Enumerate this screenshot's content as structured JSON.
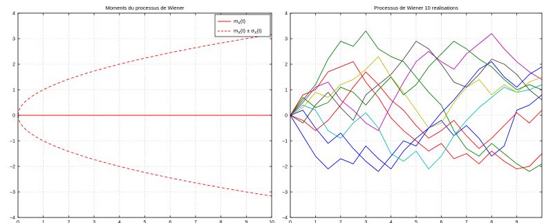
{
  "chart_data": [
    {
      "type": "line",
      "title": "Moments du processus de Wiener",
      "xlabel": "",
      "ylabel": "",
      "xlim": [
        0,
        10
      ],
      "ylim": [
        -4,
        4
      ],
      "xticks": [
        0,
        1,
        2,
        3,
        4,
        5,
        6,
        7,
        8,
        9,
        10
      ],
      "yticks": [
        -4,
        -3,
        -2,
        -1,
        0,
        1,
        2,
        3,
        4
      ],
      "grid": true,
      "legend_position": "top-right",
      "legend": {
        "mean_base": "m",
        "mean_sub": "X",
        "mean_tail": "(t)",
        "band_base": "m",
        "band_sub": "X",
        "band_mid": "(t) ± σ",
        "band_sub2": "X",
        "band_tail": "(t)"
      },
      "series": [
        {
          "name": "m_X(t)",
          "color": "#ff0000",
          "style": "solid",
          "function": "zero",
          "x": [
            0,
            10
          ],
          "y": [
            0,
            0
          ]
        },
        {
          "name": "m_X(t) ± σ_X(t)",
          "color": "#ff0000",
          "style": "dashed",
          "function": "sqrt",
          "x": [
            0,
            0.1,
            0.5,
            1,
            2,
            3,
            4,
            5,
            6,
            7,
            8,
            9,
            10
          ],
          "y_upper": [
            0,
            0.32,
            0.71,
            1.0,
            1.41,
            1.73,
            2.0,
            2.24,
            2.45,
            2.65,
            2.83,
            3.0,
            3.16
          ],
          "y_lower": [
            0,
            -0.32,
            -0.71,
            -1.0,
            -1.41,
            -1.73,
            -2.0,
            -2.24,
            -2.45,
            -2.65,
            -2.83,
            -3.0,
            -3.16
          ]
        }
      ]
    },
    {
      "type": "line",
      "title": "Processus de Wiener 10 realisations",
      "xlabel": "",
      "ylabel": "",
      "xlim": [
        0,
        10
      ],
      "ylim": [
        -4,
        4
      ],
      "xticks": [
        0,
        1,
        2,
        3,
        4,
        5,
        6,
        7,
        8,
        9
      ],
      "yticks": [
        -4,
        -3,
        -2,
        -1,
        0,
        1,
        2,
        3,
        4
      ],
      "grid": true,
      "series": [
        {
          "color": "#0000ff",
          "x": [
            0,
            0.5,
            1,
            1.5,
            2,
            2.5,
            3,
            3.5,
            4,
            4.5,
            5,
            5.5,
            6,
            6.5,
            7,
            7.5,
            8,
            8.5,
            9,
            9.5,
            10
          ],
          "y": [
            0,
            -0.8,
            -1.6,
            -2.1,
            -1.7,
            -1.9,
            -1.2,
            -1.7,
            -2.1,
            -1.4,
            -0.9,
            -0.5,
            -0.2,
            -0.8,
            -0.4,
            -0.9,
            -1.6,
            -1.2,
            0.2,
            0.4,
            0.8
          ]
        },
        {
          "color": "#008000",
          "x": [
            0,
            0.5,
            1,
            1.5,
            2,
            2.5,
            3,
            3.5,
            4,
            4.5,
            5,
            5.5,
            6,
            6.5,
            7,
            7.5,
            8,
            8.5,
            9,
            9.5,
            10
          ],
          "y": [
            0,
            0.6,
            1.2,
            2.2,
            2.9,
            2.7,
            3.3,
            2.6,
            2.3,
            2.1,
            1.5,
            0.9,
            0.4,
            -0.6,
            -1.3,
            -1.6,
            -1.1,
            -1.5,
            -1.9,
            -2.2,
            -1.9
          ]
        },
        {
          "color": "#ff0000",
          "x": [
            0,
            0.5,
            1,
            1.5,
            2,
            2.5,
            3,
            3.5,
            4,
            4.5,
            5,
            5.5,
            6,
            6.5,
            7,
            7.5,
            8,
            8.5,
            9,
            9.5,
            10
          ],
          "y": [
            0,
            0.8,
            1.0,
            1.7,
            1.9,
            2.1,
            1.3,
            0.7,
            -0.1,
            -0.6,
            -1.0,
            -1.4,
            -1.1,
            -1.7,
            -1.5,
            -1.9,
            -1.4,
            -1.8,
            -2.1,
            -2.0,
            -1.5
          ]
        },
        {
          "color": "#00bfbf",
          "x": [
            0,
            0.5,
            1,
            1.5,
            2,
            2.5,
            3,
            3.5,
            4,
            4.5,
            5,
            5.5,
            6,
            6.5,
            7,
            7.5,
            8,
            8.5,
            9,
            9.5,
            10
          ],
          "y": [
            0,
            0.4,
            0.2,
            -0.6,
            -0.9,
            -0.3,
            0.1,
            -0.5,
            -1.5,
            -1.8,
            -1.4,
            -2.1,
            -1.6,
            -0.8,
            -0.2,
            0.3,
            0.7,
            1.1,
            0.9,
            1.0,
            1.2
          ]
        },
        {
          "color": "#bf00bf",
          "x": [
            0,
            0.5,
            1,
            1.5,
            2,
            2.5,
            3,
            3.5,
            4,
            4.5,
            5,
            5.5,
            6,
            6.5,
            7,
            7.5,
            8,
            8.5,
            9,
            9.5,
            10
          ],
          "y": [
            0,
            0.5,
            1.1,
            1.3,
            0.6,
            0.2,
            -0.3,
            -0.6,
            0.4,
            1.3,
            2.1,
            2.5,
            2.1,
            1.8,
            2.4,
            2.8,
            3.2,
            2.6,
            2.1,
            1.7,
            1.4
          ]
        },
        {
          "color": "#bfbf00",
          "x": [
            0,
            0.5,
            1,
            1.5,
            2,
            2.5,
            3,
            3.5,
            4,
            4.5,
            5,
            5.5,
            6,
            6.5,
            7,
            7.5,
            8,
            8.5,
            9,
            9.5,
            10
          ],
          "y": [
            0,
            0.3,
            0.9,
            0.7,
            1.2,
            1.4,
            1.8,
            2.3,
            1.5,
            0.9,
            0.2,
            -0.5,
            -0.3,
            0.5,
            1.1,
            1.4,
            0.8,
            1.2,
            0.9,
            1.3,
            1.5
          ]
        },
        {
          "color": "#404040",
          "x": [
            0,
            0.5,
            1,
            1.5,
            2,
            2.5,
            3,
            3.5,
            4,
            4.5,
            5,
            5.5,
            6,
            6.5,
            7,
            7.5,
            8,
            8.5,
            9,
            9.5,
            10
          ],
          "y": [
            0,
            -0.3,
            0.4,
            0.9,
            0.3,
            -0.2,
            0.8,
            1.2,
            1.6,
            2.2,
            2.9,
            2.6,
            2.0,
            1.3,
            1.1,
            1.6,
            2.2,
            2.0,
            1.6,
            1.0,
            0.6
          ]
        },
        {
          "color": "#0000ff",
          "x": [
            0,
            0.5,
            1,
            1.5,
            2,
            2.5,
            3,
            3.5,
            4,
            4.5,
            5,
            5.5,
            6,
            6.5,
            7,
            7.5,
            8,
            8.5,
            9,
            9.5,
            10
          ],
          "y": [
            0,
            0.2,
            -0.5,
            -1.1,
            -0.7,
            -1.3,
            -1.8,
            -2.2,
            -1.6,
            -1.0,
            -1.2,
            -0.5,
            0.1,
            0.6,
            1.2,
            1.8,
            2.1,
            1.5,
            1.1,
            1.6,
            1.9
          ]
        },
        {
          "color": "#008000",
          "x": [
            0,
            0.5,
            1,
            1.5,
            2,
            2.5,
            3,
            3.5,
            4,
            4.5,
            5,
            5.5,
            6,
            6.5,
            7,
            7.5,
            8,
            8.5,
            9,
            9.5,
            10
          ],
          "y": [
            0,
            0.7,
            0.3,
            0.5,
            1.1,
            0.9,
            0.4,
            1.0,
            1.5,
            0.8,
            1.2,
            1.9,
            2.4,
            2.9,
            2.6,
            2.2,
            1.9,
            1.4,
            1.0,
            1.2,
            1.0
          ]
        },
        {
          "color": "#ff0000",
          "x": [
            0,
            0.5,
            1,
            1.5,
            2,
            2.5,
            3,
            3.5,
            4,
            4.5,
            5,
            5.5,
            6,
            6.5,
            7,
            7.5,
            8,
            8.5,
            9,
            9.5,
            10
          ],
          "y": [
            0,
            -0.2,
            -0.6,
            -0.2,
            0.4,
            1.1,
            1.7,
            1.2,
            0.6,
            0.2,
            -0.4,
            -0.9,
            -0.6,
            -0.2,
            -0.8,
            -1.3,
            -0.9,
            -0.4,
            0.1,
            -0.3,
            0.2
          ]
        }
      ]
    }
  ]
}
